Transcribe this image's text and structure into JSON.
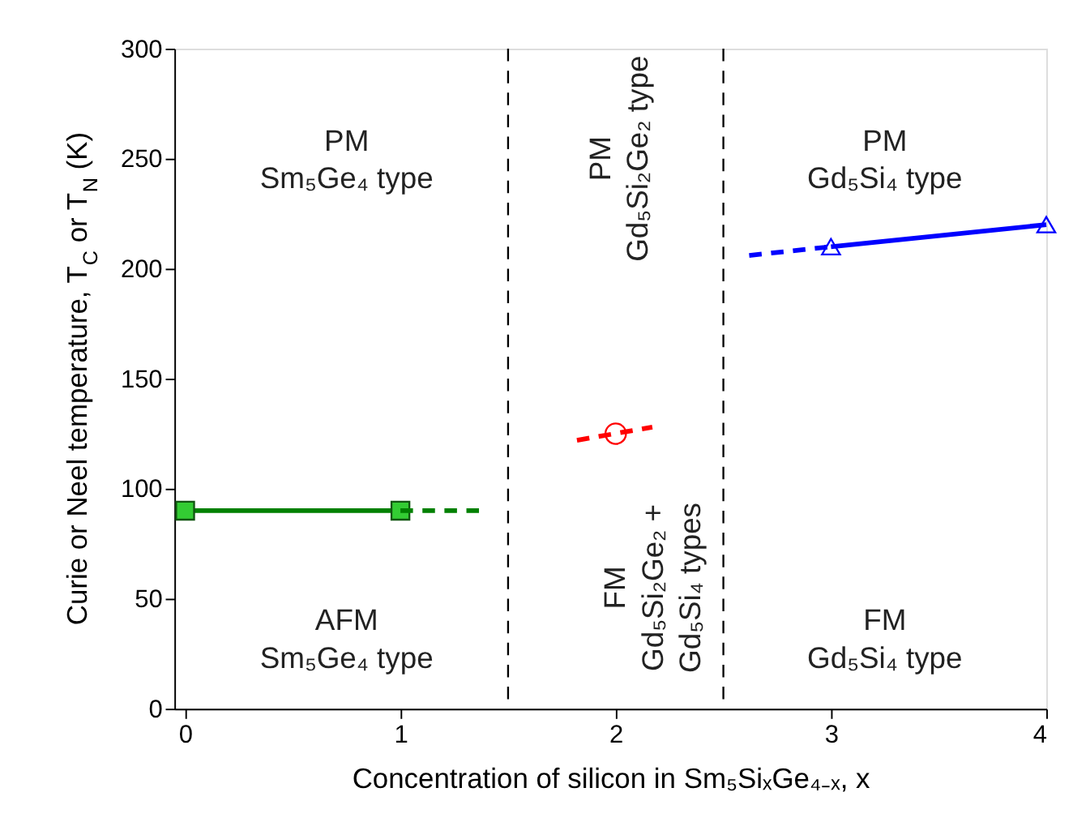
{
  "chart_data": {
    "type": "line",
    "xlabel": "Concentration of silicon in Sm₅SiₓGe₄₋ₓ, x",
    "ylabel": "Curie or Neel temperature, T$_{C}$ or T$_{N}$ (K)",
    "xlim": [
      -0.05,
      4.0
    ],
    "xticks": [
      0,
      1,
      2,
      3,
      4
    ],
    "ylim": [
      0,
      300
    ],
    "yticks": [
      0,
      50,
      100,
      150,
      200,
      250,
      300
    ],
    "series": [
      {
        "color": "#008000",
        "x": [
          0,
          1
        ],
        "values": [
          90,
          90
        ],
        "marker": "square",
        "line_style": "solid"
      },
      {
        "color": "#008000",
        "x": [
          1,
          1.38
        ],
        "values": [
          90,
          90
        ],
        "line_style": "dashed"
      },
      {
        "color": "#ff0000",
        "x": [
          1.82,
          2.17
        ],
        "values": [
          122,
          128
        ],
        "line_style": "dashed"
      },
      {
        "type": "scatter",
        "color": "#ff0000",
        "x": [
          2
        ],
        "values": [
          125
        ],
        "marker": "circle"
      },
      {
        "color": "#0000ff",
        "x": [
          3,
          4
        ],
        "values": [
          210,
          220
        ],
        "marker": "triangle",
        "line_style": "solid"
      },
      {
        "color": "#0000ff",
        "x": [
          2.62,
          3
        ],
        "values": [
          206,
          210
        ],
        "line_style": "dashed"
      }
    ],
    "ref_lines": [
      {
        "axis": "x",
        "value": 1.5,
        "color": "#000000",
        "line_style": "dashed"
      },
      {
        "axis": "x",
        "value": 2.5,
        "color": "#000000",
        "line_style": "dashed"
      }
    ],
    "annotations": [
      "PM\nSm₅Ge₄ type",
      "PM\nGd₅Si₂Ge₂ type",
      "PM\nGd₅Si₄ type",
      "AFM\nSm₅Ge₄ type",
      "FM\nGd₅Si₂Ge₂ +\nGd₅Si₄ types",
      "FM\nGd₅Si₄ type"
    ]
  }
}
